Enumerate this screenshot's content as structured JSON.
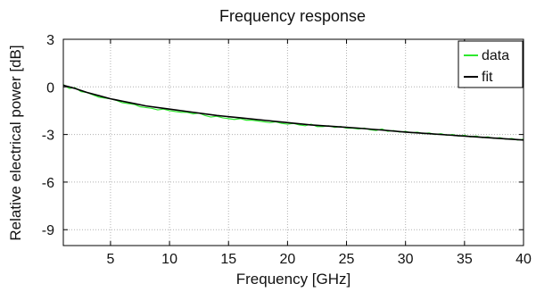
{
  "chart_data": {
    "type": "line",
    "title": "Frequency response",
    "xlabel": "Frequency [GHz]",
    "ylabel": "Relative electrical power [dB]",
    "xlim": [
      1,
      40
    ],
    "ylim": [
      -10,
      3
    ],
    "xticks": [
      5,
      10,
      15,
      20,
      25,
      30,
      35,
      40
    ],
    "yticks": [
      3,
      0,
      -3,
      -6,
      -9
    ],
    "grid": true,
    "legend_position": "top-right",
    "series": [
      {
        "name": "data",
        "color": "#2ee82e",
        "x": [
          1,
          1.5,
          2,
          2.5,
          3,
          3.5,
          4,
          4.5,
          5,
          5.5,
          6,
          6.5,
          7,
          7.5,
          8,
          8.5,
          9,
          9.5,
          10,
          10.5,
          11,
          11.5,
          12,
          12.5,
          13,
          13.5,
          14,
          14.5,
          15,
          15.5,
          16,
          16.5,
          17,
          17.5,
          18,
          18.5,
          19,
          19.5,
          20,
          20.5,
          21,
          21.5,
          22,
          22.5,
          23,
          23.5,
          24,
          24.5,
          25,
          25.5,
          26,
          26.5,
          27,
          27.5,
          28,
          28.5,
          29,
          29.5,
          30,
          30.5,
          31,
          31.5,
          32,
          32.5,
          33,
          33.5,
          34,
          34.5,
          35,
          35.5,
          36,
          36.5,
          37,
          37.5,
          38,
          38.5,
          39,
          39.5,
          40
        ],
        "y": [
          0.15,
          -0.1,
          -0.05,
          -0.3,
          -0.35,
          -0.5,
          -0.65,
          -0.7,
          -0.75,
          -0.85,
          -1.0,
          -1.05,
          -1.1,
          -1.25,
          -1.3,
          -1.35,
          -1.45,
          -1.4,
          -1.5,
          -1.55,
          -1.6,
          -1.6,
          -1.7,
          -1.65,
          -1.8,
          -1.9,
          -1.85,
          -1.95,
          -2.0,
          -2.05,
          -2.0,
          -2.1,
          -2.1,
          -2.15,
          -2.2,
          -2.25,
          -2.2,
          -2.3,
          -2.35,
          -2.3,
          -2.4,
          -2.45,
          -2.35,
          -2.5,
          -2.5,
          -2.45,
          -2.55,
          -2.5,
          -2.6,
          -2.6,
          -2.65,
          -2.6,
          -2.7,
          -2.75,
          -2.65,
          -2.8,
          -2.75,
          -2.85,
          -2.8,
          -2.9,
          -2.85,
          -2.95,
          -2.9,
          -3.0,
          -2.95,
          -3.05,
          -3.0,
          -3.1,
          -3.05,
          -3.15,
          -3.1,
          -3.2,
          -3.15,
          -3.25,
          -3.2,
          -3.3,
          -3.25,
          -3.35,
          -3.3
        ]
      },
      {
        "name": "fit",
        "color": "#000000",
        "x": [
          1,
          2,
          3,
          4,
          5,
          6,
          7,
          8,
          9,
          10,
          12,
          14,
          16,
          18,
          20,
          22,
          24,
          26,
          28,
          30,
          32,
          34,
          36,
          38,
          40
        ],
        "y": [
          0.1,
          -0.1,
          -0.35,
          -0.55,
          -0.75,
          -0.9,
          -1.05,
          -1.2,
          -1.3,
          -1.4,
          -1.6,
          -1.8,
          -1.95,
          -2.1,
          -2.25,
          -2.4,
          -2.5,
          -2.6,
          -2.72,
          -2.85,
          -2.95,
          -3.05,
          -3.15,
          -3.25,
          -3.35
        ]
      }
    ]
  }
}
